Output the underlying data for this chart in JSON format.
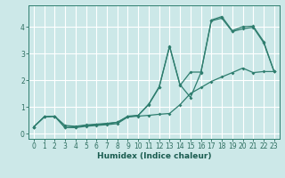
{
  "xlabel": "Humidex (Indice chaleur)",
  "bg_color": "#cce8e8",
  "grid_color": "#ffffff",
  "line_color": "#2e7d6e",
  "xlim": [
    -0.5,
    23.5
  ],
  "ylim": [
    -0.2,
    4.8
  ],
  "xticks": [
    0,
    1,
    2,
    3,
    4,
    5,
    6,
    7,
    8,
    9,
    10,
    11,
    12,
    13,
    14,
    15,
    16,
    17,
    18,
    19,
    20,
    21,
    22,
    23
  ],
  "yticks": [
    0,
    1,
    2,
    3,
    4
  ],
  "line1_x": [
    0,
    1,
    2,
    3,
    4,
    5,
    6,
    7,
    8,
    9,
    10,
    11,
    12,
    13,
    14,
    15,
    16,
    17,
    18,
    19,
    20,
    21,
    22,
    23
  ],
  "line1_y": [
    0.25,
    0.62,
    0.65,
    0.22,
    0.22,
    0.27,
    0.3,
    0.33,
    0.37,
    0.62,
    0.65,
    0.68,
    0.72,
    0.75,
    1.08,
    1.5,
    1.72,
    1.95,
    2.12,
    2.28,
    2.45,
    2.28,
    2.32,
    2.32
  ],
  "line2_x": [
    0,
    1,
    2,
    3,
    4,
    5,
    6,
    7,
    8,
    9,
    10,
    11,
    12,
    13,
    14,
    15,
    16,
    17,
    18,
    19,
    20,
    21,
    22,
    23
  ],
  "line2_y": [
    0.25,
    0.62,
    0.65,
    0.22,
    0.25,
    0.3,
    0.33,
    0.36,
    0.42,
    0.62,
    0.68,
    1.08,
    1.72,
    3.28,
    1.8,
    2.3,
    2.3,
    4.22,
    4.32,
    3.82,
    3.92,
    3.98,
    3.4,
    2.32
  ],
  "line3_x": [
    0,
    1,
    2,
    3,
    4,
    5,
    6,
    7,
    8,
    9,
    10,
    11,
    12,
    13,
    14,
    15,
    16,
    17,
    18,
    19,
    20,
    21,
    22,
    23
  ],
  "line3_y": [
    0.25,
    0.62,
    0.65,
    0.3,
    0.27,
    0.32,
    0.35,
    0.38,
    0.42,
    0.65,
    0.68,
    1.1,
    1.75,
    3.25,
    1.83,
    1.35,
    2.28,
    4.25,
    4.38,
    3.85,
    4.0,
    4.02,
    3.45,
    2.32
  ]
}
